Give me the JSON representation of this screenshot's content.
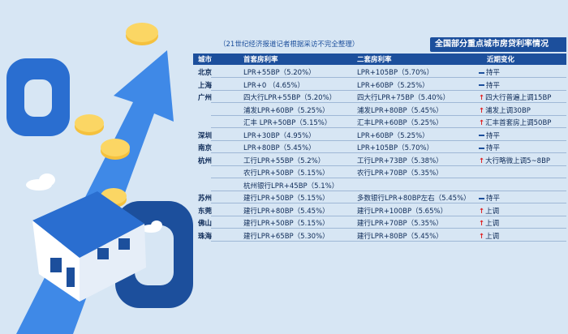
{
  "header": {
    "title": "全国部分重点城市房贷利率情况",
    "source_note": "（21世纪经济报道记者根据采访不完全整理）"
  },
  "table": {
    "columns": [
      "城市",
      "首套房利率",
      "二套房利率",
      "近期变化"
    ],
    "rows": [
      {
        "city": "北京",
        "first": "LPR+55BP（5.20%）",
        "second": "LPR+105BP（5.70%）",
        "trend": "flat",
        "change": "持平"
      },
      {
        "city": "上海",
        "first": "LPR+0 （4.65%）",
        "second": "LPR+60BP（5.25%）",
        "trend": "flat",
        "change": "持平"
      },
      {
        "city": "广州",
        "first": "四大行LPR+55BP（5.20%）",
        "second": "四大行LPR+75BP（5.40%）",
        "trend": "up",
        "change": "四大行普遍上调15BP"
      },
      {
        "city": "",
        "first": "浦发LPR+60BP（5.25%）",
        "second": "浦发LPR+80BP（5.45%）",
        "trend": "up",
        "change": "浦发上调30BP"
      },
      {
        "city": "",
        "first": "汇丰 LPR+50BP（5.15%）",
        "second": "汇丰LPR+60BP（5.25%）",
        "trend": "up",
        "change": "汇丰首套房上调50BP"
      },
      {
        "city": "深圳",
        "first": "LPR+30BP（4.95%）",
        "second": "LPR+60BP（5.25%）",
        "trend": "flat",
        "change": "持平"
      },
      {
        "city": "南京",
        "first": "LPR+80BP（5.45%）",
        "second": "LPR+105BP（5.70%）",
        "trend": "flat",
        "change": "持平"
      },
      {
        "city": "杭州",
        "first": "工行LPR+55BP（5.2%）",
        "second": "工行LPR+73BP（5.38%）",
        "trend": "up",
        "change": "大行略微上调5~8BP"
      },
      {
        "city": "",
        "first": "农行LPR+50BP（5.15%）",
        "second": "农行LPR+70BP（5.35%）",
        "trend": "none",
        "change": ""
      },
      {
        "city": "",
        "first": "杭州银行LPR+45BP（5.1%）",
        "second": "",
        "trend": "none",
        "change": ""
      },
      {
        "city": "苏州",
        "first": "建行LPR+50BP（5.15%）",
        "second": "多数银行LPR+80BP左右（5.45%）",
        "trend": "flat",
        "change": "持平"
      },
      {
        "city": "东莞",
        "first": "建行LPR+80BP（5.45%）",
        "second": "建行LPR+100BP（5.65%）",
        "trend": "up",
        "change": "上调"
      },
      {
        "city": "佛山",
        "first": "建行LPR+50BP（5.15%）",
        "second": "建行LPR+70BP（5.35%）",
        "trend": "up",
        "change": "上调"
      },
      {
        "city": "珠海",
        "first": "建行LPR+65BP（5.30%）",
        "second": "建行LPR+80BP（5.45%）",
        "trend": "up",
        "change": "上调"
      }
    ]
  },
  "colors": {
    "accent": "#1c4f9c",
    "up": "#e02020",
    "background": "#d7e6f4"
  }
}
